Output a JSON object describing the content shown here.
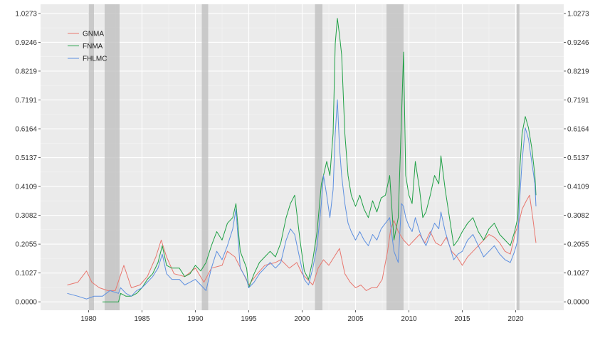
{
  "chart_data": {
    "type": "line",
    "title": "",
    "xlabel": "",
    "ylabel": "",
    "xlim": [
      1975.5,
      2024.5
    ],
    "ylim": [
      -0.03,
      1.06
    ],
    "x_ticks": [
      1980,
      1985,
      1990,
      1995,
      2000,
      2005,
      2010,
      2015,
      2020
    ],
    "x_tick_labels": [
      "1980",
      "1985",
      "1990",
      "1995",
      "2000",
      "2005",
      "2010",
      "2015",
      "2020"
    ],
    "y_ticks": [
      0,
      0.1027,
      0.2055,
      0.3082,
      0.4109,
      0.5137,
      0.6164,
      0.7191,
      0.8219,
      0.9246,
      1.0273
    ],
    "y_tick_labels": [
      "0.0000",
      "0.1027",
      "0.2055",
      "0.3082",
      "0.4109",
      "0.5137",
      "0.6164",
      "0.7191",
      "0.8219",
      "0.9246",
      "1.0273"
    ],
    "grid": true,
    "legend": "top-left",
    "recession_shading": [
      [
        1980.0,
        1980.5
      ],
      [
        1981.5,
        1982.9
      ],
      [
        1990.6,
        1991.2
      ],
      [
        2001.2,
        2001.9
      ],
      [
        2007.9,
        2009.5
      ],
      [
        2020.1,
        2020.35
      ]
    ],
    "series": [
      {
        "name": "GNMA",
        "color": "#E8776F",
        "x": [
          1978.0,
          1979.0,
          1979.8,
          1980.3,
          1981.0,
          1981.8,
          1982.5,
          1983.3,
          1984.0,
          1984.8,
          1985.5,
          1986.3,
          1986.8,
          1987.3,
          1988.0,
          1989.0,
          1990.0,
          1990.8,
          1991.5,
          1992.5,
          1993.0,
          1993.7,
          1994.5,
          1995.0,
          1995.8,
          1996.5,
          1997.5,
          1998.0,
          1998.8,
          1999.5,
          2000.0,
          2000.5,
          2001.0,
          2001.5,
          2002.0,
          2002.5,
          2003.0,
          2003.5,
          2004.0,
          2004.5,
          2005.0,
          2005.5,
          2006.0,
          2006.5,
          2007.0,
          2007.5,
          2008.0,
          2008.3,
          2008.6,
          2009.0,
          2009.5,
          2010.0,
          2010.5,
          2011.0,
          2011.5,
          2012.0,
          2012.5,
          2013.0,
          2013.5,
          2014.0,
          2014.5,
          2015.0,
          2015.5,
          2016.0,
          2016.5,
          2017.0,
          2017.5,
          2018.0,
          2018.5,
          2019.0,
          2019.5,
          2020.0,
          2020.3,
          2020.6,
          2021.0,
          2021.3,
          2021.6,
          2021.9
        ],
        "values": [
          0.06,
          0.07,
          0.11,
          0.07,
          0.05,
          0.04,
          0.04,
          0.13,
          0.05,
          0.06,
          0.09,
          0.16,
          0.22,
          0.16,
          0.1,
          0.09,
          0.12,
          0.07,
          0.12,
          0.13,
          0.18,
          0.16,
          0.1,
          0.06,
          0.1,
          0.13,
          0.14,
          0.15,
          0.12,
          0.14,
          0.1,
          0.08,
          0.06,
          0.12,
          0.15,
          0.13,
          0.16,
          0.19,
          0.1,
          0.07,
          0.05,
          0.06,
          0.04,
          0.05,
          0.05,
          0.08,
          0.18,
          0.26,
          0.29,
          0.25,
          0.22,
          0.2,
          0.22,
          0.24,
          0.21,
          0.25,
          0.21,
          0.2,
          0.23,
          0.18,
          0.16,
          0.13,
          0.16,
          0.18,
          0.2,
          0.22,
          0.24,
          0.23,
          0.21,
          0.18,
          0.17,
          0.25,
          0.28,
          0.33,
          0.36,
          0.38,
          0.3,
          0.21
        ]
      },
      {
        "name": "FNMA",
        "color": "#1FA045",
        "x": [
          1981.3,
          1982.0,
          1982.8,
          1983.0,
          1983.5,
          1984.0,
          1984.5,
          1985.0,
          1985.5,
          1986.0,
          1986.5,
          1986.9,
          1987.3,
          1987.8,
          1988.5,
          1989.0,
          1989.5,
          1990.0,
          1990.5,
          1991.0,
          1991.5,
          1992.0,
          1992.5,
          1993.0,
          1993.5,
          1993.8,
          1994.2,
          1994.8,
          1995.0,
          1995.5,
          1996.0,
          1996.5,
          1997.0,
          1997.5,
          1998.0,
          1998.5,
          1998.9,
          1999.3,
          1999.8,
          2000.2,
          2000.6,
          2001.0,
          2001.4,
          2001.8,
          2002.0,
          2002.3,
          2002.6,
          2002.9,
          2003.1,
          2003.3,
          2003.5,
          2003.7,
          2004.0,
          2004.3,
          2004.6,
          2005.0,
          2005.4,
          2005.8,
          2006.2,
          2006.6,
          2007.0,
          2007.4,
          2007.8,
          2008.2,
          2008.6,
          2009.0,
          2009.3,
          2009.5,
          2009.7,
          2010.0,
          2010.3,
          2010.6,
          2011.0,
          2011.3,
          2011.6,
          2012.0,
          2012.4,
          2012.8,
          2013.0,
          2013.4,
          2013.8,
          2014.2,
          2014.6,
          2015.0,
          2015.5,
          2016.0,
          2016.5,
          2017.0,
          2017.5,
          2018.0,
          2018.5,
          2019.0,
          2019.5,
          2019.9,
          2020.2,
          2020.4,
          2020.6,
          2020.9,
          2021.2,
          2021.5,
          2021.8,
          2021.9
        ],
        "values": [
          0.0,
          0.0,
          0.0,
          0.03,
          0.02,
          0.02,
          0.03,
          0.05,
          0.08,
          0.1,
          0.14,
          0.2,
          0.13,
          0.12,
          0.12,
          0.09,
          0.1,
          0.13,
          0.11,
          0.14,
          0.2,
          0.25,
          0.22,
          0.28,
          0.3,
          0.35,
          0.18,
          0.12,
          0.05,
          0.1,
          0.14,
          0.16,
          0.18,
          0.16,
          0.21,
          0.3,
          0.35,
          0.38,
          0.22,
          0.11,
          0.08,
          0.15,
          0.25,
          0.42,
          0.45,
          0.5,
          0.45,
          0.6,
          0.92,
          1.01,
          0.95,
          0.88,
          0.6,
          0.45,
          0.38,
          0.34,
          0.38,
          0.33,
          0.3,
          0.36,
          0.32,
          0.37,
          0.38,
          0.45,
          0.22,
          0.3,
          0.65,
          0.89,
          0.45,
          0.38,
          0.35,
          0.5,
          0.4,
          0.3,
          0.32,
          0.38,
          0.45,
          0.42,
          0.52,
          0.4,
          0.3,
          0.2,
          0.22,
          0.25,
          0.28,
          0.3,
          0.25,
          0.22,
          0.26,
          0.28,
          0.24,
          0.22,
          0.2,
          0.25,
          0.3,
          0.48,
          0.6,
          0.66,
          0.62,
          0.55,
          0.45,
          0.38
        ]
      },
      {
        "name": "FHLMC",
        "color": "#5E90E0",
        "x": [
          1978.0,
          1979.0,
          1979.8,
          1980.5,
          1981.3,
          1982.0,
          1982.8,
          1983.0,
          1983.5,
          1984.0,
          1984.5,
          1985.0,
          1985.5,
          1986.0,
          1986.5,
          1986.9,
          1987.3,
          1987.8,
          1988.5,
          1989.0,
          1989.5,
          1990.0,
          1990.5,
          1991.0,
          1991.5,
          1992.0,
          1992.5,
          1993.0,
          1993.5,
          1993.8,
          1994.2,
          1994.8,
          1995.0,
          1995.5,
          1996.0,
          1996.5,
          1997.0,
          1997.5,
          1998.0,
          1998.5,
          1998.9,
          1999.3,
          1999.8,
          2000.2,
          2000.6,
          2001.0,
          2001.4,
          2001.8,
          2002.0,
          2002.3,
          2002.6,
          2002.9,
          2003.1,
          2003.3,
          2003.5,
          2003.7,
          2004.0,
          2004.3,
          2004.6,
          2005.0,
          2005.4,
          2005.8,
          2006.2,
          2006.6,
          2007.0,
          2007.4,
          2007.8,
          2008.2,
          2008.6,
          2009.0,
          2009.3,
          2009.5,
          2009.7,
          2010.0,
          2010.3,
          2010.6,
          2011.0,
          2011.3,
          2011.6,
          2012.0,
          2012.4,
          2012.8,
          2013.0,
          2013.4,
          2013.8,
          2014.2,
          2014.6,
          2015.0,
          2015.5,
          2016.0,
          2016.5,
          2017.0,
          2017.5,
          2018.0,
          2018.5,
          2019.0,
          2019.5,
          2019.9,
          2020.2,
          2020.4,
          2020.6,
          2020.9,
          2021.2,
          2021.5,
          2021.8,
          2021.9
        ],
        "values": [
          0.03,
          0.02,
          0.01,
          0.02,
          0.02,
          0.04,
          0.03,
          0.05,
          0.03,
          0.02,
          0.04,
          0.05,
          0.07,
          0.09,
          0.12,
          0.17,
          0.1,
          0.08,
          0.08,
          0.06,
          0.07,
          0.08,
          0.06,
          0.04,
          0.12,
          0.18,
          0.15,
          0.2,
          0.26,
          0.33,
          0.12,
          0.08,
          0.05,
          0.07,
          0.1,
          0.12,
          0.14,
          0.12,
          0.14,
          0.22,
          0.26,
          0.24,
          0.15,
          0.08,
          0.06,
          0.12,
          0.2,
          0.35,
          0.45,
          0.38,
          0.3,
          0.4,
          0.6,
          0.72,
          0.55,
          0.45,
          0.35,
          0.28,
          0.25,
          0.22,
          0.25,
          0.22,
          0.2,
          0.24,
          0.22,
          0.26,
          0.28,
          0.3,
          0.18,
          0.14,
          0.35,
          0.34,
          0.3,
          0.27,
          0.25,
          0.3,
          0.25,
          0.22,
          0.2,
          0.24,
          0.28,
          0.26,
          0.32,
          0.25,
          0.2,
          0.15,
          0.17,
          0.18,
          0.22,
          0.24,
          0.2,
          0.16,
          0.18,
          0.2,
          0.17,
          0.15,
          0.14,
          0.18,
          0.22,
          0.38,
          0.5,
          0.62,
          0.58,
          0.5,
          0.42,
          0.34
        ]
      }
    ]
  }
}
